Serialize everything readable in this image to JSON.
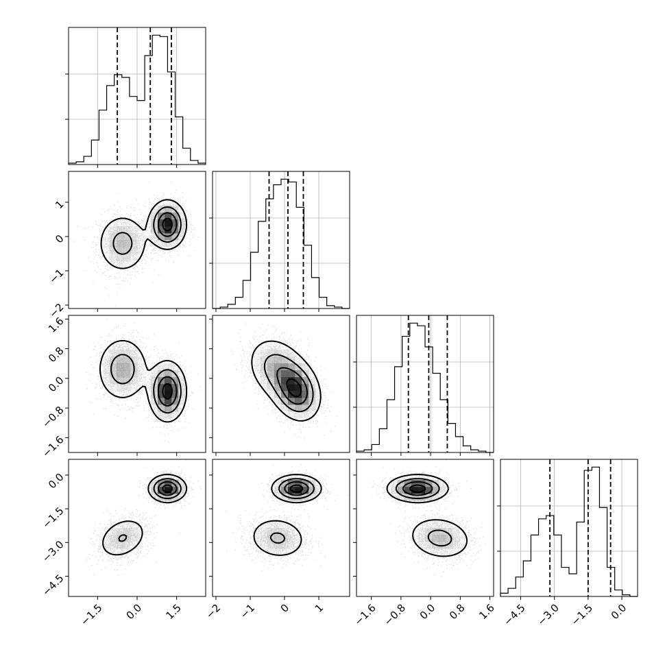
{
  "chart_data": {
    "type": "corner",
    "n_params": 4,
    "quantiles": [
      0.16,
      0.5,
      0.84
    ],
    "grid": true,
    "colors": {
      "line": "#000000",
      "grid": "#b0b0b0",
      "points": "#808080"
    },
    "params": [
      {
        "range": [
          -2.6,
          2.6
        ],
        "ticks": [
          -1.5,
          0.0,
          1.5
        ],
        "tick_labels": [
          "−1.5",
          "0.0",
          "1.5"
        ],
        "quantile_values": [
          -0.75,
          0.5,
          1.3
        ],
        "mixture": [
          {
            "w": 0.45,
            "m": -0.55,
            "s": 0.5
          },
          {
            "w": 0.55,
            "m": 1.15,
            "s": 0.35
          }
        ]
      },
      {
        "range": [
          -2.1,
          1.9
        ],
        "ticks": [
          -2,
          -1,
          0,
          1
        ],
        "tick_labels": [
          "−2",
          "−1",
          "0",
          "1"
        ],
        "quantile_values": [
          -0.45,
          0.1,
          0.55
        ],
        "mixture": [
          {
            "w": 0.45,
            "m": -0.2,
            "s": 0.45
          },
          {
            "w": 0.55,
            "m": 0.35,
            "s": 0.35
          }
        ]
      },
      {
        "range": [
          -2.0,
          1.7
        ],
        "ticks": [
          -1.6,
          -0.8,
          0.0,
          0.8,
          1.6
        ],
        "tick_labels": [
          "−1.6",
          "−0.8",
          "0.0",
          "0.8",
          "1.6"
        ],
        "quantile_values": [
          -0.6,
          -0.05,
          0.45
        ],
        "mixture": [
          {
            "w": 0.45,
            "m": 0.25,
            "s": 0.45
          },
          {
            "w": 0.55,
            "m": -0.35,
            "s": 0.4
          }
        ]
      },
      {
        "range": [
          -5.4,
          0.7
        ],
        "ticks": [
          -4.5,
          -3.0,
          -1.5,
          0.0
        ],
        "tick_labels": [
          "−4.5",
          "−3.0",
          "−1.5",
          "0.0"
        ],
        "quantile_values": [
          -3.2,
          -1.5,
          -0.5
        ],
        "mixture": [
          {
            "w": 0.45,
            "m": -2.8,
            "s": 0.5
          },
          {
            "w": 0.55,
            "m": -0.6,
            "s": 0.3
          }
        ]
      }
    ],
    "hist_counts": [
      [
        1,
        2,
        6,
        18,
        40,
        58,
        66,
        64,
        50,
        47,
        80,
        95,
        94,
        68,
        35,
        12,
        3,
        1
      ],
      [
        0,
        1,
        3,
        8,
        20,
        40,
        62,
        78,
        88,
        92,
        90,
        72,
        45,
        22,
        8,
        2,
        1,
        0
      ],
      [
        1,
        2,
        6,
        18,
        40,
        65,
        88,
        98,
        96,
        80,
        60,
        40,
        22,
        12,
        5,
        2,
        1,
        0
      ],
      [
        2,
        5,
        12,
        22,
        38,
        48,
        50,
        38,
        18,
        14,
        46,
        78,
        80,
        55,
        18,
        4,
        1,
        0
      ]
    ],
    "pairs": [
      {
        "row": 1,
        "col": 0,
        "clusters": [
          {
            "w": 0.45,
            "mx": -0.55,
            "my": -0.2,
            "sx": 0.5,
            "sy": 0.45,
            "rho": 0.0
          },
          {
            "w": 0.55,
            "mx": 1.15,
            "my": 0.35,
            "sx": 0.35,
            "sy": 0.35,
            "rho": 0.0
          }
        ]
      },
      {
        "row": 2,
        "col": 0,
        "clusters": [
          {
            "w": 0.45,
            "mx": -0.55,
            "my": 0.25,
            "sx": 0.5,
            "sy": 0.45,
            "rho": 0.0
          },
          {
            "w": 0.55,
            "mx": 1.15,
            "my": -0.35,
            "sx": 0.35,
            "sy": 0.4,
            "rho": 0.0
          }
        ]
      },
      {
        "row": 2,
        "col": 1,
        "clusters": [
          {
            "w": 0.45,
            "mx": -0.2,
            "my": 0.25,
            "sx": 0.45,
            "sy": 0.45,
            "rho": -0.25
          },
          {
            "w": 0.55,
            "mx": 0.35,
            "my": -0.35,
            "sx": 0.35,
            "sy": 0.4,
            "rho": -0.2
          }
        ]
      },
      {
        "row": 3,
        "col": 0,
        "clusters": [
          {
            "w": 0.45,
            "mx": -0.55,
            "my": -2.8,
            "sx": 0.5,
            "sy": 0.5,
            "rho": 0.3
          },
          {
            "w": 0.55,
            "mx": 1.15,
            "my": -0.6,
            "sx": 0.35,
            "sy": 0.3,
            "rho": 0.0
          }
        ]
      },
      {
        "row": 3,
        "col": 1,
        "clusters": [
          {
            "w": 0.45,
            "mx": -0.2,
            "my": -2.8,
            "sx": 0.45,
            "sy": 0.5,
            "rho": -0.1
          },
          {
            "w": 0.55,
            "mx": 0.35,
            "my": -0.6,
            "sx": 0.35,
            "sy": 0.3,
            "rho": 0.0
          }
        ]
      },
      {
        "row": 3,
        "col": 2,
        "clusters": [
          {
            "w": 0.45,
            "mx": 0.25,
            "my": -2.8,
            "sx": 0.45,
            "sy": 0.5,
            "rho": -0.15
          },
          {
            "w": 0.55,
            "mx": -0.35,
            "my": -0.6,
            "sx": 0.4,
            "sy": 0.3,
            "rho": 0.0
          }
        ]
      }
    ]
  }
}
